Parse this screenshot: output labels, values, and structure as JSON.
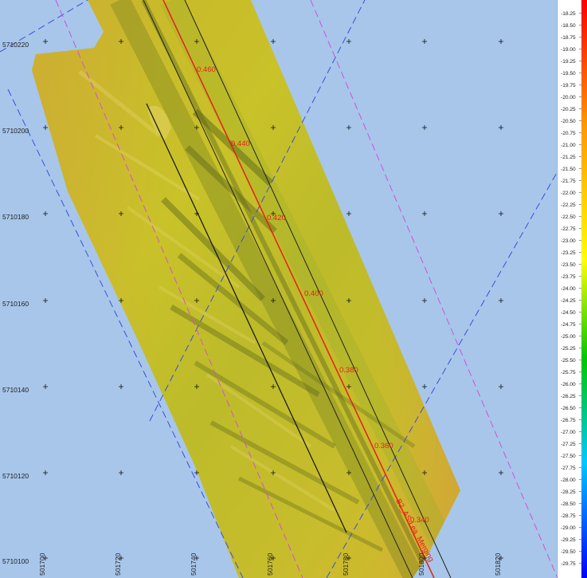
{
  "map": {
    "background_color": "#a7c6ea",
    "colormap": [
      "#ff0000",
      "#ff9900",
      "#ffff00",
      "#00c800",
      "#00c8ff",
      "#0000ff"
    ],
    "northings": [
      "5710220",
      "5710200",
      "5710180",
      "5710160",
      "5710140",
      "5710120",
      "5710100"
    ],
    "eastings": [
      "501700",
      "501720",
      "501740",
      "501760",
      "501780",
      "501800",
      "501820"
    ],
    "route_kp_labels": [
      "0.460",
      "0.440",
      "0.420",
      "0.400",
      "0.380",
      "0.360",
      "0.340"
    ],
    "route_name": "B2_AS-Lea_Merging",
    "depth_scale": [
      "-18.25",
      "-18.50",
      "-18.75",
      "-19.00",
      "-19.25",
      "-19.50",
      "-19.75",
      "-20.00",
      "-20.25",
      "-20.50",
      "-20.75",
      "-21.00",
      "-21.25",
      "-21.50",
      "-21.75",
      "-22.00",
      "-22.25",
      "-22.50",
      "-22.75",
      "-23.00",
      "-23.25",
      "-23.50",
      "-23.75",
      "-24.00",
      "-24.25",
      "-24.50",
      "-24.75",
      "-25.00",
      "-25.25",
      "-25.50",
      "-25.75",
      "-26.00",
      "-26.25",
      "-26.50",
      "-26.75",
      "-27.00",
      "-27.25",
      "-27.50",
      "-27.75",
      "-28.00",
      "-28.25",
      "-28.50",
      "-28.75",
      "-29.00",
      "-29.25",
      "-29.50",
      "-29.75"
    ]
  }
}
